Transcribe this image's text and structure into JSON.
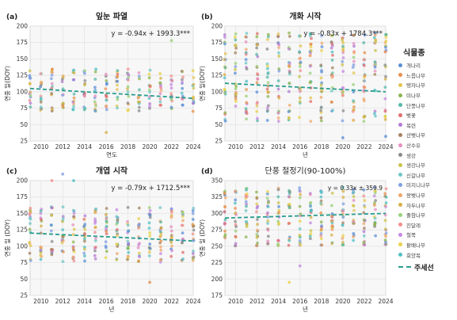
{
  "figure_title": "",
  "chart_data": [
    {
      "type": "scatter",
      "panel_letter": "(a)",
      "title": "잎눈 파열",
      "xlabel": "연도",
      "ylabel": "연중 일(DOY)",
      "xlim": [
        2009,
        2024
      ],
      "ylim": [
        25,
        200
      ],
      "xticks": [
        2010,
        2012,
        2014,
        2016,
        2018,
        2020,
        2022,
        2024
      ],
      "yticks": [
        25,
        50,
        75,
        100,
        125,
        150,
        175,
        200
      ],
      "grid": true,
      "equation": "y = -0.94x + 1993.3***",
      "trend": {
        "x": [
          2009,
          2024
        ],
        "y": [
          105,
          90
        ]
      },
      "points_per_year": 14,
      "spread": [
        70,
        135
      ],
      "outliers": [
        [
          2022,
          178
        ],
        [
          2016,
          38
        ]
      ]
    },
    {
      "type": "scatter",
      "panel_letter": "(b)",
      "title": "개화 시작",
      "xlabel": "년",
      "ylabel": "연중 일(DOY)",
      "xlim": [
        2009,
        2024
      ],
      "ylim": [
        25,
        200
      ],
      "xticks": [
        2010,
        2012,
        2014,
        2016,
        2018,
        2020,
        2022,
        2024
      ],
      "yticks": [
        25,
        50,
        75,
        100,
        125,
        150,
        175,
        200
      ],
      "grid": true,
      "equation": "y = -0.83x + 1784.3***",
      "trend": {
        "x": [
          2009,
          2024
        ],
        "y": [
          113,
          100
        ]
      },
      "points_per_year": 22,
      "spread": [
        55,
        190
      ],
      "outliers": [
        [
          2024,
          32
        ],
        [
          2020,
          30
        ]
      ]
    },
    {
      "type": "scatter",
      "panel_letter": "(c)",
      "title": "개엽 시작",
      "xlabel": "년",
      "ylabel": "연중 일 (DOY)",
      "xlim": [
        2009,
        2024
      ],
      "ylim": [
        25,
        200
      ],
      "xticks": [
        2010,
        2012,
        2014,
        2016,
        2018,
        2020,
        2022,
        2024
      ],
      "yticks": [
        25,
        50,
        75,
        100,
        125,
        150,
        175,
        200
      ],
      "grid": true,
      "equation": "y = -0.79x + 1712.5***",
      "trend": {
        "x": [
          2009,
          2024
        ],
        "y": [
          120,
          108
        ]
      },
      "points_per_year": 18,
      "spread": [
        75,
        160
      ],
      "outliers": [
        [
          2013,
          200
        ],
        [
          2011,
          200
        ],
        [
          2012,
          210
        ],
        [
          2020,
          45
        ]
      ]
    },
    {
      "type": "scatter",
      "panel_letter": "(d)",
      "title": "단풍 절정기(90-100%)",
      "xlabel": "년",
      "ylabel": "연중 일 (DOY)",
      "xlim": [
        2009,
        2024
      ],
      "ylim": [
        175,
        350
      ],
      "xticks": [
        2010,
        2012,
        2014,
        2016,
        2018,
        2020,
        2022,
        2024
      ],
      "yticks": [
        175,
        200,
        225,
        250,
        275,
        300,
        325,
        350
      ],
      "grid": true,
      "equation": "y = 0.33x ± 359.9",
      "trend": {
        "x": [
          2009,
          2024
        ],
        "y": [
          293,
          300
        ]
      },
      "points_per_year": 18,
      "spread": [
        250,
        340
      ],
      "outliers": [
        [
          2015,
          195
        ],
        [
          2016,
          220
        ]
      ]
    }
  ],
  "legend": {
    "title": "식물종",
    "items": [
      {
        "label": "개나리",
        "color": "#5b8fd6"
      },
      {
        "label": "느릅나무",
        "color": "#e8904b"
      },
      {
        "label": "탱자나무",
        "color": "#e3c44f"
      },
      {
        "label": "미나무",
        "color": "#8cb54f"
      },
      {
        "label": "단풍나무",
        "color": "#54b8a7"
      },
      {
        "label": "벚꽃",
        "color": "#e26d6d"
      },
      {
        "label": "목련",
        "color": "#b37ad3"
      },
      {
        "label": "산벚나무",
        "color": "#a7825e"
      },
      {
        "label": "산수유",
        "color": "#e48ec0"
      },
      {
        "label": "생강",
        "color": "#8a8a8a"
      },
      {
        "label": "생강나무",
        "color": "#c9c24a"
      },
      {
        "label": "신갈나무",
        "color": "#6fc6c6"
      },
      {
        "label": "미지니나무",
        "color": "#7f9fe0"
      },
      {
        "label": "왕벚나무",
        "color": "#f0a86a"
      },
      {
        "label": "자두나무",
        "color": "#d8b04a"
      },
      {
        "label": "졸참나무",
        "color": "#9ad07a"
      },
      {
        "label": "진달래",
        "color": "#f28f8f"
      },
      {
        "label": "철쭉",
        "color": "#c58ae0"
      },
      {
        "label": "팥배나무",
        "color": "#e8d24a"
      },
      {
        "label": "회양목",
        "color": "#4fbfc4"
      }
    ],
    "trend_label": "주세선",
    "trend_color": "#2a9d8f"
  }
}
